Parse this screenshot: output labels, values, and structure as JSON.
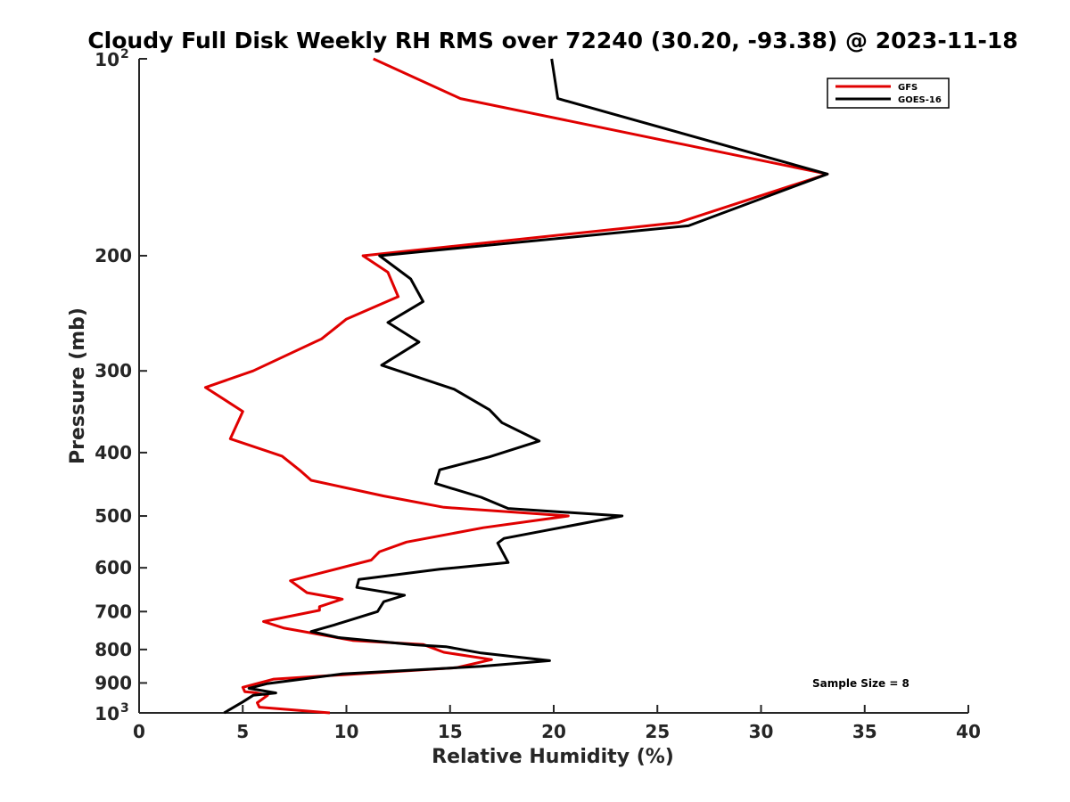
{
  "chart_data": {
    "type": "line",
    "title": "Cloudy Full Disk Weekly RH RMS over 72240 (30.20, -93.38) @ 2023-11-18",
    "xlabel": "Relative Humidity (%)",
    "ylabel": "Pressure (mb)",
    "xlim": [
      0,
      40
    ],
    "ylim": [
      100,
      1000
    ],
    "yscale": "log",
    "y_reversed": true,
    "grid": false,
    "legend_position": "top-right",
    "x_ticks": [
      "0",
      "5",
      "10",
      "15",
      "20",
      "25",
      "30",
      "35",
      "40"
    ],
    "y_ticks": [
      {
        "value": 100,
        "base": "10",
        "sup": "2"
      },
      {
        "value": 200,
        "label": "200"
      },
      {
        "value": 300,
        "label": "300"
      },
      {
        "value": 400,
        "label": "400"
      },
      {
        "value": 500,
        "label": "500"
      },
      {
        "value": 600,
        "label": "600"
      },
      {
        "value": 700,
        "label": "700"
      },
      {
        "value": 800,
        "label": "800"
      },
      {
        "value": 900,
        "label": "900"
      },
      {
        "value": 1000,
        "base": "10",
        "sup": "3"
      }
    ],
    "annotation": "Sample Size = 8",
    "series": [
      {
        "name": "GFS",
        "color": "#e00000",
        "points": [
          [
            11.3,
            100
          ],
          [
            15.5,
            115
          ],
          [
            33.2,
            150
          ],
          [
            26.0,
            178
          ],
          [
            10.8,
            200
          ],
          [
            12.0,
            212
          ],
          [
            12.5,
            231
          ],
          [
            10.0,
            250
          ],
          [
            8.8,
            268
          ],
          [
            5.5,
            300
          ],
          [
            3.2,
            318
          ],
          [
            5.0,
            346
          ],
          [
            4.4,
            381
          ],
          [
            6.9,
            405
          ],
          [
            7.8,
            427
          ],
          [
            8.3,
            441
          ],
          [
            11.8,
            466
          ],
          [
            14.7,
            485
          ],
          [
            20.7,
            500
          ],
          [
            16.6,
            521
          ],
          [
            12.9,
            548
          ],
          [
            11.6,
            567
          ],
          [
            11.2,
            584
          ],
          [
            7.3,
            628
          ],
          [
            8.1,
            655
          ],
          [
            9.8,
            670
          ],
          [
            8.7,
            688
          ],
          [
            8.7,
            697
          ],
          [
            6.0,
            725
          ],
          [
            7.0,
            742
          ],
          [
            10.3,
            775
          ],
          [
            13.7,
            786
          ],
          [
            14.7,
            808
          ],
          [
            17.0,
            829
          ],
          [
            15.3,
            853
          ],
          [
            6.5,
            888
          ],
          [
            5.0,
            914
          ],
          [
            5.1,
            928
          ],
          [
            5.6,
            931
          ],
          [
            6.2,
            940
          ],
          [
            5.7,
            965
          ],
          [
            5.8,
            980
          ],
          [
            9.2,
            1000
          ]
        ]
      },
      {
        "name": "GOES-16",
        "color": "#000000",
        "points": [
          [
            19.9,
            100
          ],
          [
            20.2,
            115
          ],
          [
            33.2,
            150
          ],
          [
            26.5,
            180
          ],
          [
            11.6,
            200
          ],
          [
            13.1,
            217
          ],
          [
            13.7,
            235
          ],
          [
            12.0,
            253
          ],
          [
            13.5,
            271
          ],
          [
            11.7,
            294
          ],
          [
            15.2,
            320
          ],
          [
            16.9,
            344
          ],
          [
            17.5,
            360
          ],
          [
            19.3,
            384
          ],
          [
            16.9,
            406
          ],
          [
            14.5,
            425
          ],
          [
            14.3,
            446
          ],
          [
            16.5,
            468
          ],
          [
            17.8,
            487
          ],
          [
            23.3,
            500
          ],
          [
            17.6,
            541
          ],
          [
            17.3,
            550
          ],
          [
            17.8,
            589
          ],
          [
            14.5,
            603
          ],
          [
            10.6,
            625
          ],
          [
            10.5,
            643
          ],
          [
            12.8,
            661
          ],
          [
            11.8,
            676
          ],
          [
            11.5,
            700
          ],
          [
            9.4,
            734
          ],
          [
            8.3,
            751
          ],
          [
            9.6,
            767
          ],
          [
            13.3,
            787
          ],
          [
            14.8,
            792
          ],
          [
            16.5,
            810
          ],
          [
            19.8,
            832
          ],
          [
            16.5,
            849
          ],
          [
            9.8,
            872
          ],
          [
            6.2,
            902
          ],
          [
            5.3,
            917
          ],
          [
            6.6,
            932
          ],
          [
            5.5,
            940
          ],
          [
            5.0,
            962
          ],
          [
            4.1,
            1000
          ]
        ]
      }
    ]
  }
}
